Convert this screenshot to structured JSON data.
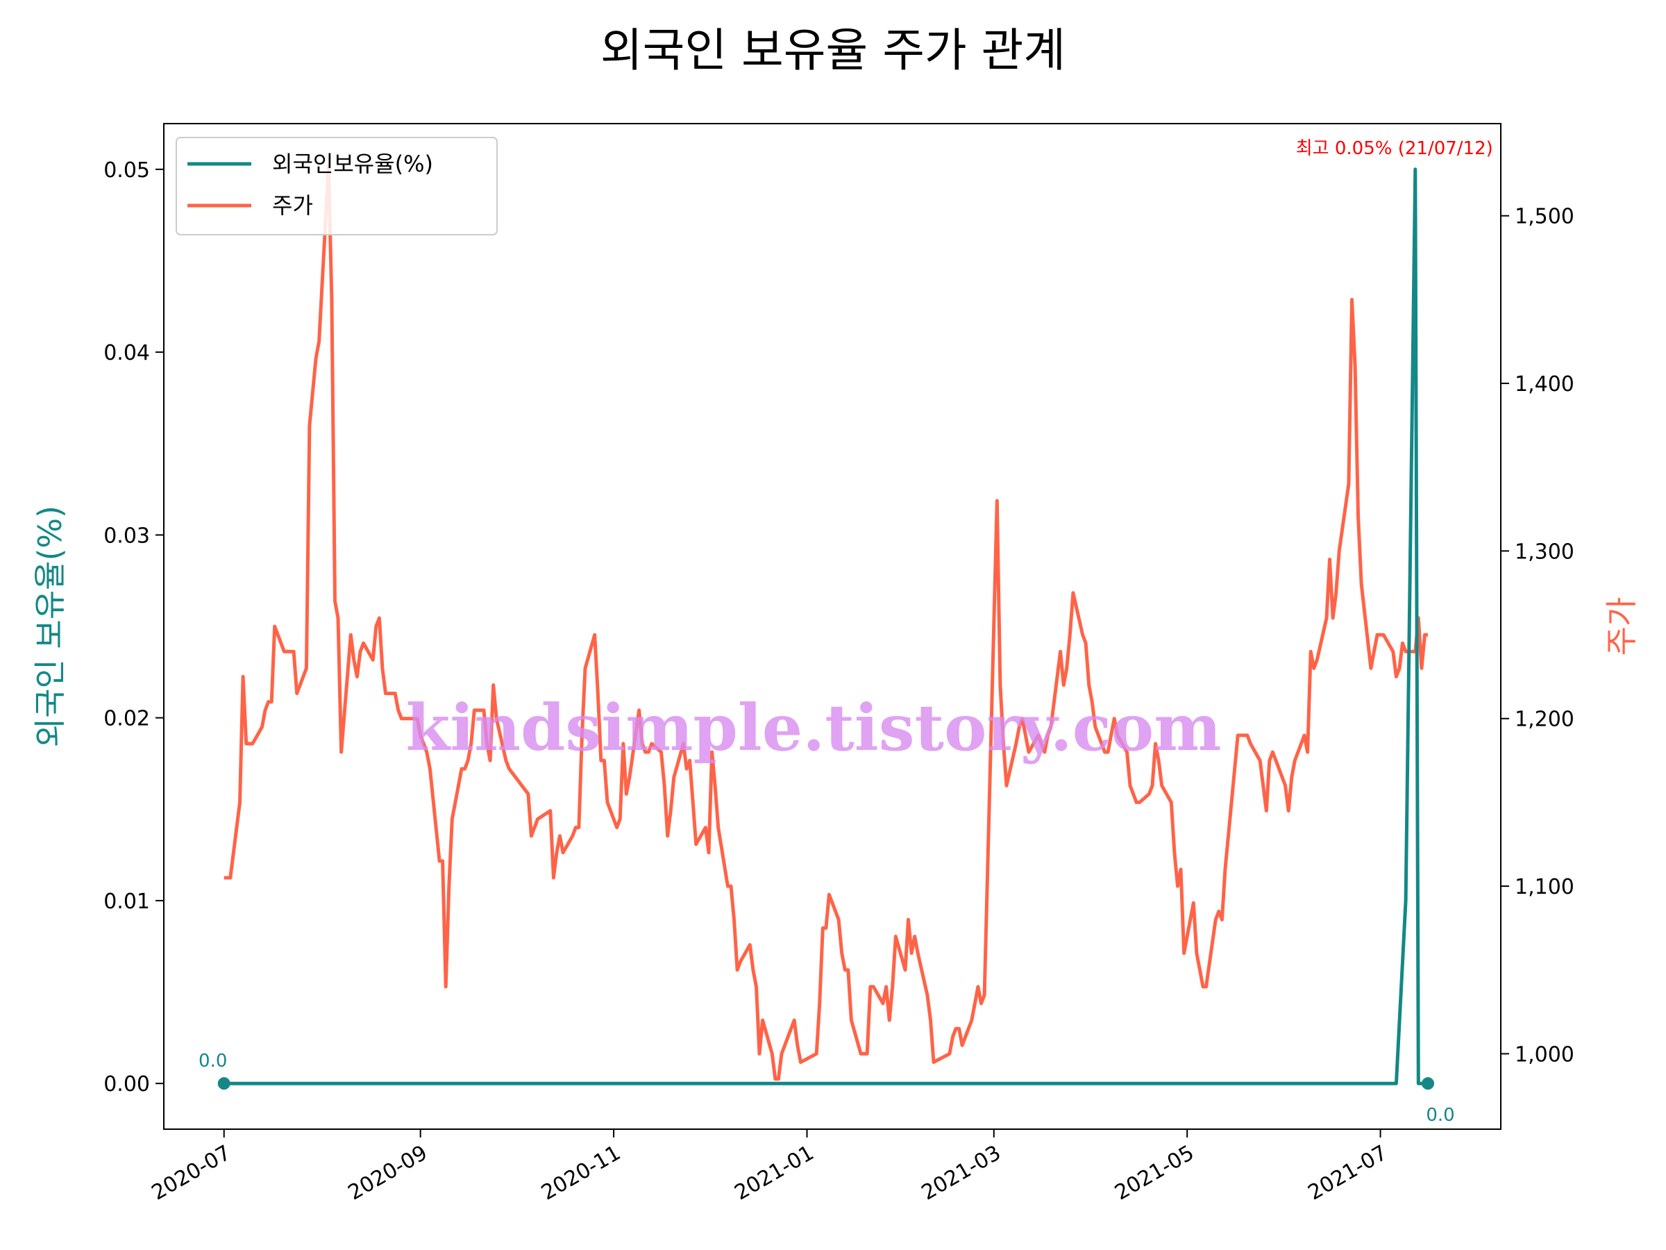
{
  "chart_data": {
    "type": "line",
    "title": "외국인 보유율 주가 관계",
    "ylabel_left": "외국인 보유율(%)",
    "ylabel_right": "주가",
    "x_tick_labels": [
      "2020-07",
      "2020-09",
      "2020-11",
      "2021-01",
      "2021-03",
      "2021-05",
      "2021-07"
    ],
    "x_ticks": [
      "2020-07-01",
      "2020-09-01",
      "2020-11-01",
      "2021-01-01",
      "2021-03-01",
      "2021-05-01",
      "2021-07-01"
    ],
    "xlim": [
      "2020-06-12",
      "2021-08-08"
    ],
    "ylim_left": [
      -0.0025,
      0.0525
    ],
    "ylim_right": [
      955,
      1555
    ],
    "y_ticks_left": [
      "0.00",
      "0.01",
      "0.02",
      "0.03",
      "0.04",
      "0.05"
    ],
    "y_ticks_right": [
      "1,000",
      "1,100",
      "1,200",
      "1,300",
      "1,400",
      "1,500"
    ],
    "legend": {
      "placement": "top-left",
      "entries": [
        "외국인보유율(%)",
        "주가"
      ]
    },
    "watermark": "kindsimple.tistory.com",
    "colors": {
      "holding": "#138887",
      "price": "#ff6347",
      "max_annotation": "#ff0000"
    },
    "series": [
      {
        "name": "외국인보유율(%)",
        "axis": "left",
        "points": [
          [
            "2020-07-01",
            0.0
          ],
          [
            "2021-07-06",
            0.0
          ],
          [
            "2021-07-09",
            0.01
          ],
          [
            "2021-07-12",
            0.05
          ],
          [
            "2021-07-13",
            0.0
          ],
          [
            "2021-07-16",
            0.0
          ]
        ]
      },
      {
        "name": "주가",
        "axis": "right",
        "points": [
          [
            "2020-07-01",
            1105
          ],
          [
            "2020-07-02",
            1105
          ],
          [
            "2020-07-03",
            1105
          ],
          [
            "2020-07-06",
            1150
          ],
          [
            "2020-07-07",
            1225
          ],
          [
            "2020-07-08",
            1185
          ],
          [
            "2020-07-09",
            1185
          ],
          [
            "2020-07-10",
            1185
          ],
          [
            "2020-07-13",
            1195
          ],
          [
            "2020-07-14",
            1205
          ],
          [
            "2020-07-15",
            1210
          ],
          [
            "2020-07-16",
            1210
          ],
          [
            "2020-07-17",
            1255
          ],
          [
            "2020-07-20",
            1240
          ],
          [
            "2020-07-21",
            1240
          ],
          [
            "2020-07-22",
            1240
          ],
          [
            "2020-07-23",
            1240
          ],
          [
            "2020-07-24",
            1215
          ],
          [
            "2020-07-27",
            1230
          ],
          [
            "2020-07-28",
            1375
          ],
          [
            "2020-07-29",
            1395
          ],
          [
            "2020-07-30",
            1415
          ],
          [
            "2020-07-31",
            1425
          ],
          [
            "2020-08-03",
            1530
          ],
          [
            "2020-08-04",
            1450
          ],
          [
            "2020-08-05",
            1270
          ],
          [
            "2020-08-06",
            1260
          ],
          [
            "2020-08-07",
            1180
          ],
          [
            "2020-08-10",
            1250
          ],
          [
            "2020-08-11",
            1235
          ],
          [
            "2020-08-12",
            1225
          ],
          [
            "2020-08-13",
            1240
          ],
          [
            "2020-08-14",
            1245
          ],
          [
            "2020-08-17",
            1235
          ],
          [
            "2020-08-18",
            1255
          ],
          [
            "2020-08-19",
            1260
          ],
          [
            "2020-08-20",
            1230
          ],
          [
            "2020-08-21",
            1215
          ],
          [
            "2020-08-24",
            1215
          ],
          [
            "2020-08-25",
            1205
          ],
          [
            "2020-08-26",
            1200
          ],
          [
            "2020-08-27",
            1200
          ],
          [
            "2020-08-28",
            1200
          ],
          [
            "2020-08-31",
            1200
          ],
          [
            "2020-09-01",
            1190
          ],
          [
            "2020-09-02",
            1185
          ],
          [
            "2020-09-03",
            1180
          ],
          [
            "2020-09-04",
            1170
          ],
          [
            "2020-09-07",
            1115
          ],
          [
            "2020-09-08",
            1115
          ],
          [
            "2020-09-09",
            1040
          ],
          [
            "2020-09-10",
            1100
          ],
          [
            "2020-09-11",
            1140
          ],
          [
            "2020-09-14",
            1170
          ],
          [
            "2020-09-15",
            1170
          ],
          [
            "2020-09-16",
            1175
          ],
          [
            "2020-09-17",
            1185
          ],
          [
            "2020-09-18",
            1205
          ],
          [
            "2020-09-21",
            1205
          ],
          [
            "2020-09-22",
            1185
          ],
          [
            "2020-09-23",
            1175
          ],
          [
            "2020-09-24",
            1220
          ],
          [
            "2020-09-25",
            1200
          ],
          [
            "2020-09-28",
            1175
          ],
          [
            "2020-09-29",
            1170
          ],
          [
            "2020-10-05",
            1155
          ],
          [
            "2020-10-06",
            1130
          ],
          [
            "2020-10-07",
            1135
          ],
          [
            "2020-10-08",
            1140
          ],
          [
            "2020-10-12",
            1145
          ],
          [
            "2020-10-13",
            1105
          ],
          [
            "2020-10-14",
            1120
          ],
          [
            "2020-10-15",
            1130
          ],
          [
            "2020-10-16",
            1120
          ],
          [
            "2020-10-19",
            1130
          ],
          [
            "2020-10-20",
            1135
          ],
          [
            "2020-10-21",
            1135
          ],
          [
            "2020-10-22",
            1190
          ],
          [
            "2020-10-23",
            1230
          ],
          [
            "2020-10-26",
            1250
          ],
          [
            "2020-10-27",
            1215
          ],
          [
            "2020-10-28",
            1175
          ],
          [
            "2020-10-29",
            1175
          ],
          [
            "2020-10-30",
            1150
          ],
          [
            "2020-11-02",
            1135
          ],
          [
            "2020-11-03",
            1140
          ],
          [
            "2020-11-04",
            1185
          ],
          [
            "2020-11-05",
            1155
          ],
          [
            "2020-11-06",
            1165
          ],
          [
            "2020-11-09",
            1205
          ],
          [
            "2020-11-10",
            1185
          ],
          [
            "2020-11-11",
            1180
          ],
          [
            "2020-11-12",
            1180
          ],
          [
            "2020-11-13",
            1185
          ],
          [
            "2020-11-16",
            1180
          ],
          [
            "2020-11-17",
            1160
          ],
          [
            "2020-11-18",
            1130
          ],
          [
            "2020-11-19",
            1145
          ],
          [
            "2020-11-20",
            1165
          ],
          [
            "2020-11-23",
            1185
          ],
          [
            "2020-11-24",
            1170
          ],
          [
            "2020-11-25",
            1175
          ],
          [
            "2020-11-26",
            1150
          ],
          [
            "2020-11-27",
            1125
          ],
          [
            "2020-11-30",
            1135
          ],
          [
            "2020-12-01",
            1120
          ],
          [
            "2020-12-02",
            1180
          ],
          [
            "2020-12-03",
            1160
          ],
          [
            "2020-12-04",
            1135
          ],
          [
            "2020-12-07",
            1100
          ],
          [
            "2020-12-08",
            1100
          ],
          [
            "2020-12-09",
            1080
          ],
          [
            "2020-12-10",
            1050
          ],
          [
            "2020-12-11",
            1055
          ],
          [
            "2020-12-14",
            1065
          ],
          [
            "2020-12-15",
            1050
          ],
          [
            "2020-12-16",
            1040
          ],
          [
            "2020-12-17",
            1000
          ],
          [
            "2020-12-18",
            1020
          ],
          [
            "2020-12-21",
            1000
          ],
          [
            "2020-12-22",
            985
          ],
          [
            "2020-12-23",
            985
          ],
          [
            "2020-12-24",
            1000
          ],
          [
            "2020-12-28",
            1020
          ],
          [
            "2020-12-29",
            1005
          ],
          [
            "2020-12-30",
            995
          ],
          [
            "2021-01-04",
            1000
          ],
          [
            "2021-01-05",
            1030
          ],
          [
            "2021-01-06",
            1075
          ],
          [
            "2021-01-07",
            1075
          ],
          [
            "2021-01-08",
            1095
          ],
          [
            "2021-01-11",
            1080
          ],
          [
            "2021-01-12",
            1060
          ],
          [
            "2021-01-13",
            1050
          ],
          [
            "2021-01-14",
            1050
          ],
          [
            "2021-01-15",
            1020
          ],
          [
            "2021-01-18",
            1000
          ],
          [
            "2021-01-19",
            1000
          ],
          [
            "2021-01-20",
            1000
          ],
          [
            "2021-01-21",
            1040
          ],
          [
            "2021-01-22",
            1040
          ],
          [
            "2021-01-25",
            1030
          ],
          [
            "2021-01-26",
            1040
          ],
          [
            "2021-01-27",
            1020
          ],
          [
            "2021-01-28",
            1040
          ],
          [
            "2021-01-29",
            1070
          ],
          [
            "2021-02-01",
            1050
          ],
          [
            "2021-02-02",
            1080
          ],
          [
            "2021-02-03",
            1060
          ],
          [
            "2021-02-04",
            1070
          ],
          [
            "2021-02-05",
            1060
          ],
          [
            "2021-02-08",
            1035
          ],
          [
            "2021-02-09",
            1020
          ],
          [
            "2021-02-10",
            995
          ],
          [
            "2021-02-15",
            1000
          ],
          [
            "2021-02-16",
            1010
          ],
          [
            "2021-02-17",
            1015
          ],
          [
            "2021-02-18",
            1015
          ],
          [
            "2021-02-19",
            1005
          ],
          [
            "2021-02-22",
            1020
          ],
          [
            "2021-02-23",
            1030
          ],
          [
            "2021-02-24",
            1040
          ],
          [
            "2021-02-25",
            1030
          ],
          [
            "2021-02-26",
            1035
          ],
          [
            "2021-03-02",
            1330
          ],
          [
            "2021-03-03",
            1220
          ],
          [
            "2021-03-04",
            1185
          ],
          [
            "2021-03-05",
            1160
          ],
          [
            "2021-03-08",
            1185
          ],
          [
            "2021-03-09",
            1195
          ],
          [
            "2021-03-10",
            1200
          ],
          [
            "2021-03-11",
            1190
          ],
          [
            "2021-03-12",
            1180
          ],
          [
            "2021-03-15",
            1190
          ],
          [
            "2021-03-16",
            1185
          ],
          [
            "2021-03-17",
            1180
          ],
          [
            "2021-03-18",
            1190
          ],
          [
            "2021-03-19",
            1195
          ],
          [
            "2021-03-22",
            1240
          ],
          [
            "2021-03-23",
            1220
          ],
          [
            "2021-03-24",
            1230
          ],
          [
            "2021-03-25",
            1250
          ],
          [
            "2021-03-26",
            1275
          ],
          [
            "2021-03-29",
            1250
          ],
          [
            "2021-03-30",
            1245
          ],
          [
            "2021-03-31",
            1220
          ],
          [
            "2021-04-01",
            1210
          ],
          [
            "2021-04-02",
            1195
          ],
          [
            "2021-04-05",
            1180
          ],
          [
            "2021-04-06",
            1180
          ],
          [
            "2021-04-07",
            1190
          ],
          [
            "2021-04-08",
            1200
          ],
          [
            "2021-04-09",
            1190
          ],
          [
            "2021-04-12",
            1180
          ],
          [
            "2021-04-13",
            1160
          ],
          [
            "2021-04-14",
            1155
          ],
          [
            "2021-04-15",
            1150
          ],
          [
            "2021-04-16",
            1150
          ],
          [
            "2021-04-19",
            1155
          ],
          [
            "2021-04-20",
            1160
          ],
          [
            "2021-04-21",
            1185
          ],
          [
            "2021-04-22",
            1175
          ],
          [
            "2021-04-23",
            1160
          ],
          [
            "2021-04-26",
            1150
          ],
          [
            "2021-04-27",
            1120
          ],
          [
            "2021-04-28",
            1100
          ],
          [
            "2021-04-29",
            1110
          ],
          [
            "2021-04-30",
            1060
          ],
          [
            "2021-05-03",
            1090
          ],
          [
            "2021-05-04",
            1060
          ],
          [
            "2021-05-06",
            1040
          ],
          [
            "2021-05-07",
            1040
          ],
          [
            "2021-05-10",
            1080
          ],
          [
            "2021-05-11",
            1085
          ],
          [
            "2021-05-12",
            1080
          ],
          [
            "2021-05-13",
            1110
          ],
          [
            "2021-05-14",
            1130
          ],
          [
            "2021-05-17",
            1190
          ],
          [
            "2021-05-18",
            1190
          ],
          [
            "2021-05-20",
            1190
          ],
          [
            "2021-05-21",
            1185
          ],
          [
            "2021-05-24",
            1175
          ],
          [
            "2021-05-25",
            1160
          ],
          [
            "2021-05-26",
            1145
          ],
          [
            "2021-05-27",
            1175
          ],
          [
            "2021-05-28",
            1180
          ],
          [
            "2021-05-31",
            1165
          ],
          [
            "2021-06-01",
            1160
          ],
          [
            "2021-06-02",
            1145
          ],
          [
            "2021-06-03",
            1165
          ],
          [
            "2021-06-04",
            1175
          ],
          [
            "2021-06-07",
            1190
          ],
          [
            "2021-06-08",
            1180
          ],
          [
            "2021-06-09",
            1240
          ],
          [
            "2021-06-10",
            1230
          ],
          [
            "2021-06-11",
            1235
          ],
          [
            "2021-06-14",
            1260
          ],
          [
            "2021-06-15",
            1295
          ],
          [
            "2021-06-16",
            1260
          ],
          [
            "2021-06-17",
            1275
          ],
          [
            "2021-06-18",
            1300
          ],
          [
            "2021-06-21",
            1340
          ],
          [
            "2021-06-22",
            1450
          ],
          [
            "2021-06-23",
            1410
          ],
          [
            "2021-06-24",
            1320
          ],
          [
            "2021-06-25",
            1280
          ],
          [
            "2021-06-28",
            1230
          ],
          [
            "2021-06-29",
            1240
          ],
          [
            "2021-06-30",
            1250
          ],
          [
            "2021-07-01",
            1250
          ],
          [
            "2021-07-02",
            1250
          ],
          [
            "2021-07-05",
            1240
          ],
          [
            "2021-07-06",
            1225
          ],
          [
            "2021-07-07",
            1230
          ],
          [
            "2021-07-08",
            1245
          ],
          [
            "2021-07-09",
            1240
          ],
          [
            "2021-07-12",
            1240
          ],
          [
            "2021-07-13",
            1260
          ],
          [
            "2021-07-14",
            1230
          ],
          [
            "2021-07-15",
            1250
          ],
          [
            "2021-07-16",
            1250
          ]
        ]
      }
    ],
    "annotations": [
      {
        "text": "0.0",
        "x": "2020-07-01",
        "y": 0.0,
        "axis": "left"
      },
      {
        "text": "0.0",
        "x": "2021-07-16",
        "y": 0.0,
        "axis": "left"
      },
      {
        "text": "최고 0.05% (21/07/12)",
        "x": "2021-07-12",
        "y": 0.05,
        "axis": "left"
      }
    ]
  }
}
